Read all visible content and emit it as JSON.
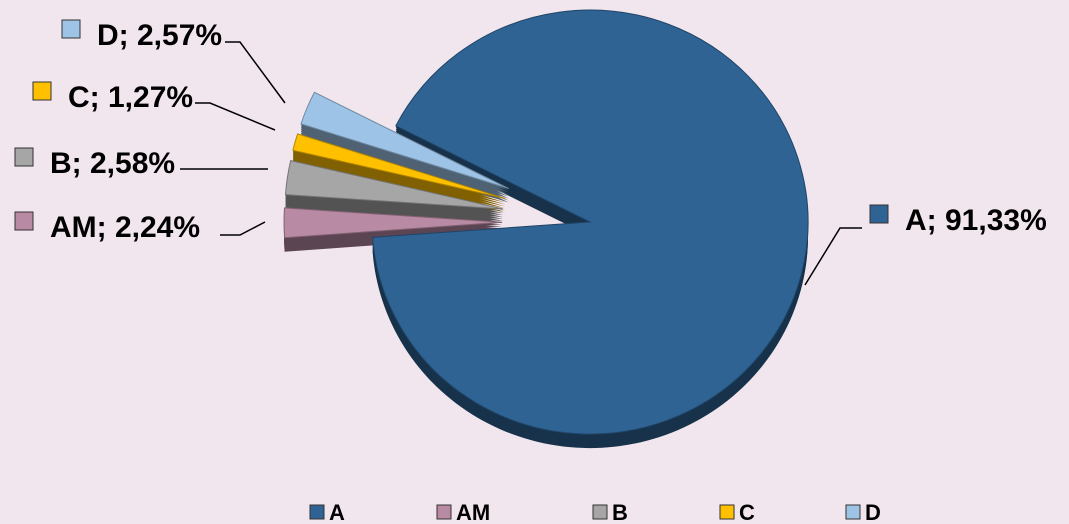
{
  "chart_data": {
    "type": "pie",
    "title": "",
    "slices": [
      {
        "name": "A",
        "value": 91.33,
        "label": "A; 91,33%",
        "color": "#2e6393"
      },
      {
        "name": "AM",
        "value": 2.24,
        "label": "AM; 2,24%",
        "color": "#b88aa3"
      },
      {
        "name": "B",
        "value": 2.58,
        "label": "B; 2,58%",
        "color": "#a6a6a6"
      },
      {
        "name": "C",
        "value": 1.27,
        "label": "C; 1,27%",
        "color": "#ffc000"
      },
      {
        "name": "D",
        "value": 2.57,
        "label": "D; 2,57%",
        "color": "#9dc3e6"
      }
    ],
    "legend": {
      "position": "bottom",
      "entries": [
        "A",
        "AM",
        "B",
        "C",
        "D"
      ]
    },
    "exploded": true,
    "style": "3d"
  }
}
